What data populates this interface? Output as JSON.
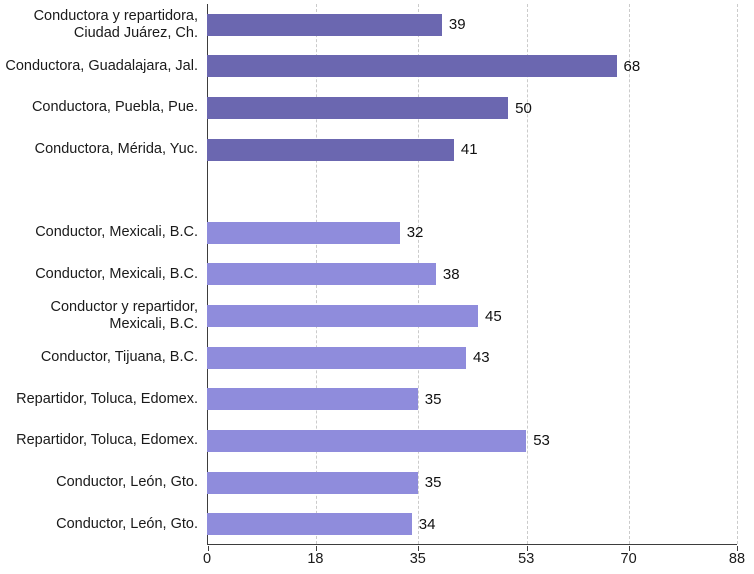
{
  "chart_data": {
    "type": "bar",
    "orientation": "horizontal",
    "title": "",
    "xlabel": "",
    "ylabel": "",
    "xlim": [
      0,
      88
    ],
    "x_ticks": [
      0,
      18,
      35,
      53,
      70,
      88
    ],
    "grid": true,
    "legend": "none",
    "bar_colors": {
      "conductoras": "#6b67b0",
      "conductores": "#8f8cdc"
    },
    "rows": [
      {
        "label": "Conductora y repartidora,\nCiudad Juárez, Ch.",
        "value": 39,
        "series": "conductoras"
      },
      {
        "label": "Conductora, Guadalajara, Jal.",
        "value": 68,
        "series": "conductoras"
      },
      {
        "label": "Conductora, Puebla, Pue.",
        "value": 50,
        "series": "conductoras"
      },
      {
        "label": "Conductora, Mérida, Yuc.",
        "value": 41,
        "series": "conductoras"
      },
      {
        "spacer": true
      },
      {
        "label": "Conductor, Mexicali, B.C.",
        "value": 32,
        "series": "conductores"
      },
      {
        "label": "Conductor, Mexicali, B.C.",
        "value": 38,
        "series": "conductores"
      },
      {
        "label": "Conductor y repartidor,\nMexicali, B.C.",
        "value": 45,
        "series": "conductores"
      },
      {
        "label": "Conductor, Tijuana, B.C.",
        "value": 43,
        "series": "conductores"
      },
      {
        "label": "Repartidor, Toluca, Edomex.",
        "value": 35,
        "series": "conductores"
      },
      {
        "label": "Repartidor, Toluca, Edomex.",
        "value": 53,
        "series": "conductores"
      },
      {
        "label": "Conductor, León, Gto.",
        "value": 35,
        "series": "conductores"
      },
      {
        "label": "Conductor, León, Gto.",
        "value": 34,
        "series": "conductores"
      }
    ],
    "axis_color": "#3d3d3d",
    "gridline_color": "#cbcbcb"
  }
}
